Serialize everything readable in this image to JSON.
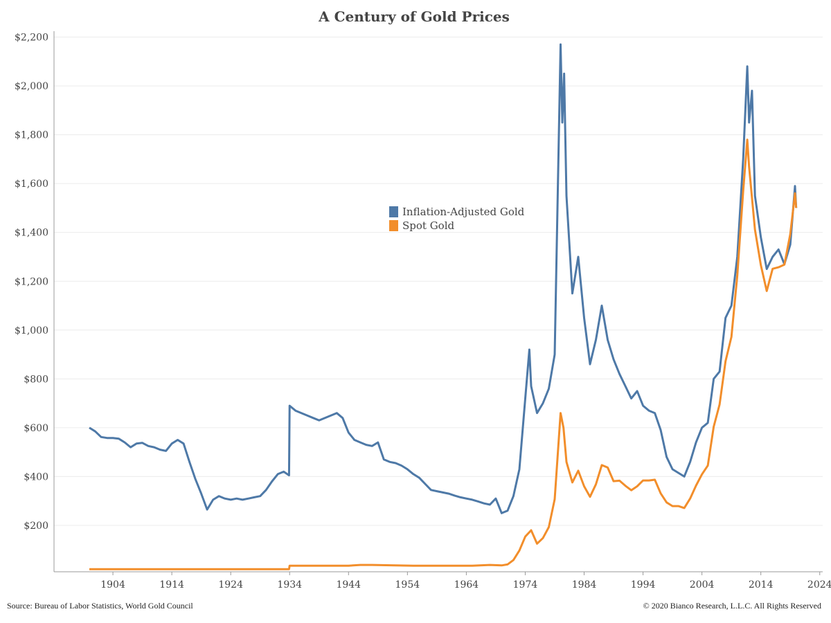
{
  "page": {
    "title": "A Century of Gold Prices",
    "source": "Source: Bureau of Labor Statistics, World Gold Council",
    "copyright": "© 2020 Bianco Research, L.L.C. All Rights Reserved"
  },
  "colors": {
    "inflation": "#4e79a7",
    "spot": "#f28e2b",
    "grid": "#ececec",
    "axis": "#999999"
  },
  "chart_data": {
    "type": "line",
    "title": "A Century of Gold Prices",
    "xlabel": "",
    "ylabel": "",
    "xlim": [
      1894,
      2024.5
    ],
    "ylim": [
      10,
      2210
    ],
    "x_ticks": [
      1904,
      1914,
      1924,
      1934,
      1944,
      1954,
      1964,
      1974,
      1984,
      1994,
      2004,
      2014,
      2024
    ],
    "y_ticks": [
      200,
      400,
      600,
      800,
      1000,
      1200,
      1400,
      1600,
      1800,
      2000,
      2200
    ],
    "y_tick_labels": [
      "$200",
      "$400",
      "$600",
      "$800",
      "$1,000",
      "$1,200",
      "$1,400",
      "$1,600",
      "$1,800",
      "$2,000",
      "$2,200"
    ],
    "grid": "horizontal",
    "legend_position": "center",
    "series": [
      {
        "name": "Inflation-Adjusted Gold",
        "color": "#4e79a7",
        "points": [
          [
            1900,
            600
          ],
          [
            1901,
            585
          ],
          [
            1902,
            562
          ],
          [
            1903,
            558
          ],
          [
            1904,
            558
          ],
          [
            1905,
            555
          ],
          [
            1906,
            540
          ],
          [
            1907,
            520
          ],
          [
            1908,
            535
          ],
          [
            1909,
            538
          ],
          [
            1910,
            525
          ],
          [
            1911,
            520
          ],
          [
            1912,
            510
          ],
          [
            1913,
            505
          ],
          [
            1914,
            535
          ],
          [
            1915,
            550
          ],
          [
            1916,
            535
          ],
          [
            1917,
            460
          ],
          [
            1918,
            390
          ],
          [
            1919,
            330
          ],
          [
            1920,
            265
          ],
          [
            1921,
            305
          ],
          [
            1922,
            320
          ],
          [
            1923,
            310
          ],
          [
            1924,
            305
          ],
          [
            1925,
            310
          ],
          [
            1926,
            305
          ],
          [
            1927,
            310
          ],
          [
            1928,
            315
          ],
          [
            1929,
            320
          ],
          [
            1930,
            345
          ],
          [
            1931,
            380
          ],
          [
            1932,
            410
          ],
          [
            1933,
            420
          ],
          [
            1933.9,
            405
          ],
          [
            1934,
            690
          ],
          [
            1935,
            670
          ],
          [
            1936,
            660
          ],
          [
            1937,
            650
          ],
          [
            1938,
            640
          ],
          [
            1939,
            630
          ],
          [
            1940,
            640
          ],
          [
            1941,
            650
          ],
          [
            1942,
            660
          ],
          [
            1943,
            640
          ],
          [
            1944,
            580
          ],
          [
            1945,
            550
          ],
          [
            1946,
            540
          ],
          [
            1947,
            530
          ],
          [
            1948,
            525
          ],
          [
            1949,
            540
          ],
          [
            1950,
            470
          ],
          [
            1951,
            460
          ],
          [
            1952,
            455
          ],
          [
            1953,
            445
          ],
          [
            1954,
            430
          ],
          [
            1955,
            410
          ],
          [
            1956,
            395
          ],
          [
            1957,
            370
          ],
          [
            1958,
            345
          ],
          [
            1959,
            340
          ],
          [
            1960,
            335
          ],
          [
            1961,
            330
          ],
          [
            1962,
            322
          ],
          [
            1963,
            315
          ],
          [
            1964,
            310
          ],
          [
            1965,
            305
          ],
          [
            1966,
            298
          ],
          [
            1967,
            290
          ],
          [
            1968,
            285
          ],
          [
            1969,
            310
          ],
          [
            1970,
            250
          ],
          [
            1971,
            260
          ],
          [
            1972,
            320
          ],
          [
            1973,
            430
          ],
          [
            1974,
            720
          ],
          [
            1974.7,
            920
          ],
          [
            1975,
            770
          ],
          [
            1976,
            660
          ],
          [
            1977,
            700
          ],
          [
            1978,
            760
          ],
          [
            1979,
            900
          ],
          [
            1980,
            2170
          ],
          [
            1980.3,
            1850
          ],
          [
            1980.6,
            2050
          ],
          [
            1981,
            1550
          ],
          [
            1982,
            1150
          ],
          [
            1983,
            1300
          ],
          [
            1984,
            1050
          ],
          [
            1985,
            860
          ],
          [
            1986,
            960
          ],
          [
            1987,
            1100
          ],
          [
            1988,
            960
          ],
          [
            1989,
            880
          ],
          [
            1990,
            820
          ],
          [
            1991,
            770
          ],
          [
            1992,
            720
          ],
          [
            1993,
            750
          ],
          [
            1994,
            690
          ],
          [
            1995,
            670
          ],
          [
            1996,
            660
          ],
          [
            1997,
            590
          ],
          [
            1998,
            480
          ],
          [
            1999,
            430
          ],
          [
            2000,
            415
          ],
          [
            2001,
            400
          ],
          [
            2002,
            460
          ],
          [
            2003,
            540
          ],
          [
            2004,
            600
          ],
          [
            2005,
            620
          ],
          [
            2006,
            800
          ],
          [
            2007,
            830
          ],
          [
            2008,
            1050
          ],
          [
            2009,
            1100
          ],
          [
            2010,
            1300
          ],
          [
            2011,
            1700
          ],
          [
            2011.7,
            2080
          ],
          [
            2012,
            1850
          ],
          [
            2012.5,
            1980
          ],
          [
            2013,
            1550
          ],
          [
            2014,
            1380
          ],
          [
            2015,
            1250
          ],
          [
            2016,
            1300
          ],
          [
            2017,
            1330
          ],
          [
            2018,
            1270
          ],
          [
            2019,
            1350
          ],
          [
            2019.8,
            1590
          ],
          [
            2020,
            1500
          ]
        ]
      },
      {
        "name": "Spot Gold",
        "color": "#f28e2b",
        "points": [
          [
            1900,
            20.67
          ],
          [
            1910,
            20.67
          ],
          [
            1920,
            20.67
          ],
          [
            1930,
            20.67
          ],
          [
            1933.9,
            20.67
          ],
          [
            1934,
            35
          ],
          [
            1944,
            35
          ],
          [
            1946,
            38
          ],
          [
            1948,
            38
          ],
          [
            1955,
            35
          ],
          [
            1965,
            35
          ],
          [
            1968,
            38
          ],
          [
            1970,
            36
          ],
          [
            1971,
            40
          ],
          [
            1972,
            58
          ],
          [
            1973,
            97
          ],
          [
            1974,
            154
          ],
          [
            1975,
            180
          ],
          [
            1976,
            125
          ],
          [
            1977,
            148
          ],
          [
            1978,
            193
          ],
          [
            1979,
            307
          ],
          [
            1980,
            660
          ],
          [
            1980.5,
            600
          ],
          [
            1981,
            460
          ],
          [
            1982,
            376
          ],
          [
            1983,
            424
          ],
          [
            1984,
            360
          ],
          [
            1985,
            317
          ],
          [
            1986,
            368
          ],
          [
            1987,
            447
          ],
          [
            1988,
            437
          ],
          [
            1989,
            381
          ],
          [
            1990,
            383
          ],
          [
            1991,
            362
          ],
          [
            1992,
            344
          ],
          [
            1993,
            360
          ],
          [
            1994,
            384
          ],
          [
            1995,
            384
          ],
          [
            1996,
            387
          ],
          [
            1997,
            331
          ],
          [
            1998,
            294
          ],
          [
            1999,
            279
          ],
          [
            2000,
            279
          ],
          [
            2001,
            271
          ],
          [
            2002,
            310
          ],
          [
            2003,
            363
          ],
          [
            2004,
            409
          ],
          [
            2005,
            445
          ],
          [
            2006,
            604
          ],
          [
            2007,
            695
          ],
          [
            2008,
            872
          ],
          [
            2009,
            972
          ],
          [
            2010,
            1224
          ],
          [
            2011,
            1570
          ],
          [
            2011.7,
            1780
          ],
          [
            2012,
            1669
          ],
          [
            2013,
            1411
          ],
          [
            2014,
            1266
          ],
          [
            2015,
            1160
          ],
          [
            2016,
            1251
          ],
          [
            2017,
            1257
          ],
          [
            2018,
            1268
          ],
          [
            2019,
            1393
          ],
          [
            2019.8,
            1560
          ],
          [
            2020,
            1500
          ]
        ]
      }
    ]
  }
}
